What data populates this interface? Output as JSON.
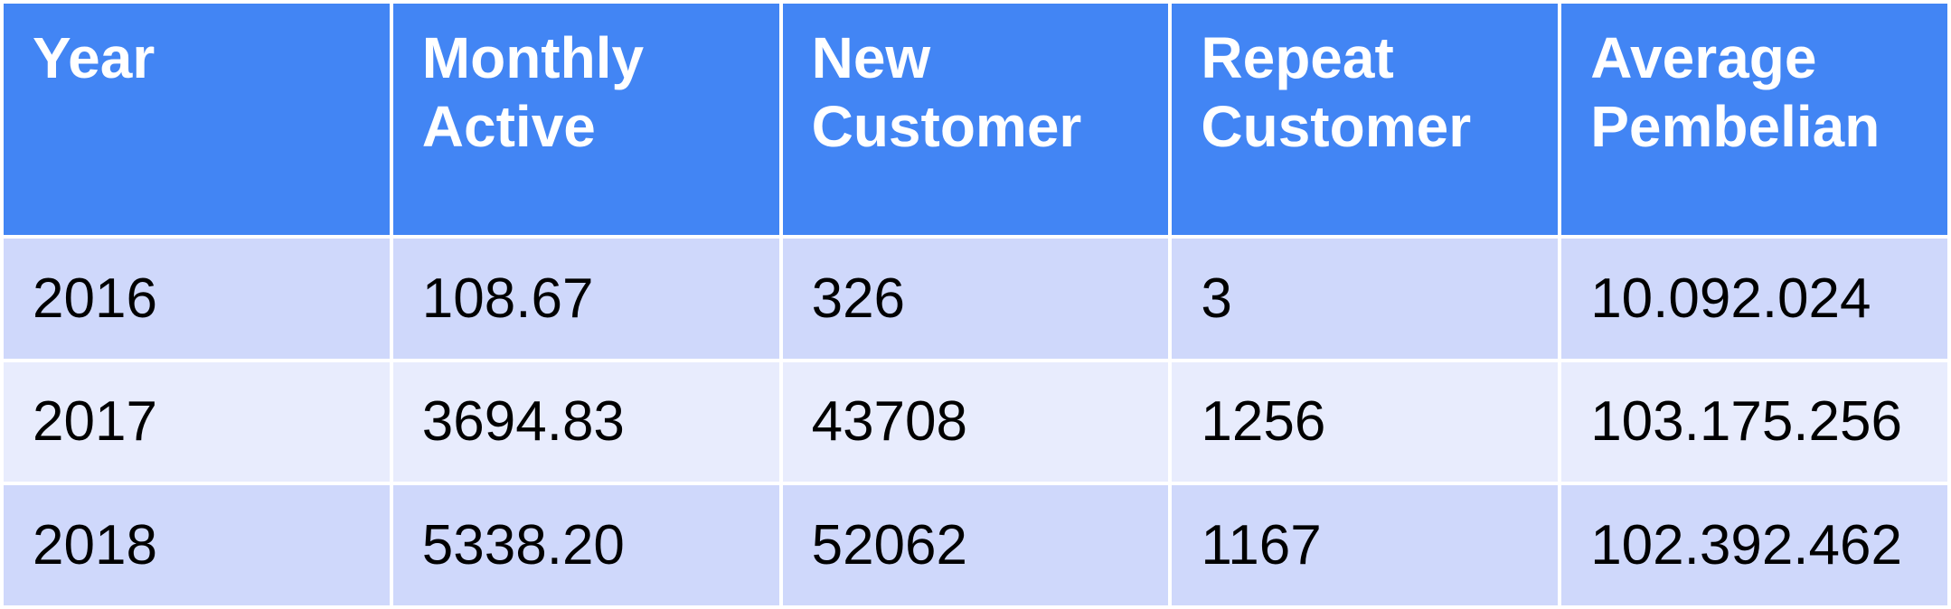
{
  "table": {
    "headers": [
      "Year",
      "Monthly Active",
      "New Customer",
      "Repeat Customer",
      "Average Pembelian"
    ],
    "header_lines": [
      [
        "Year"
      ],
      [
        "Monthly",
        "Active"
      ],
      [
        "New",
        "Customer"
      ],
      [
        "Repeat",
        "Customer"
      ],
      [
        "Average",
        "Pembelian"
      ]
    ],
    "rows": [
      [
        "2016",
        "108.67",
        "326",
        "3",
        "10.092.024"
      ],
      [
        "2017",
        "3694.83",
        "43708",
        "1256",
        "103.175.256"
      ],
      [
        "2018",
        "5338.20",
        "52062",
        "1167",
        "102.392.462"
      ]
    ]
  },
  "colors": {
    "header_bg": "#4285f4",
    "header_text": "#ffffff",
    "row_dark": "#cfd8fb",
    "row_light": "#e8ecfd"
  }
}
